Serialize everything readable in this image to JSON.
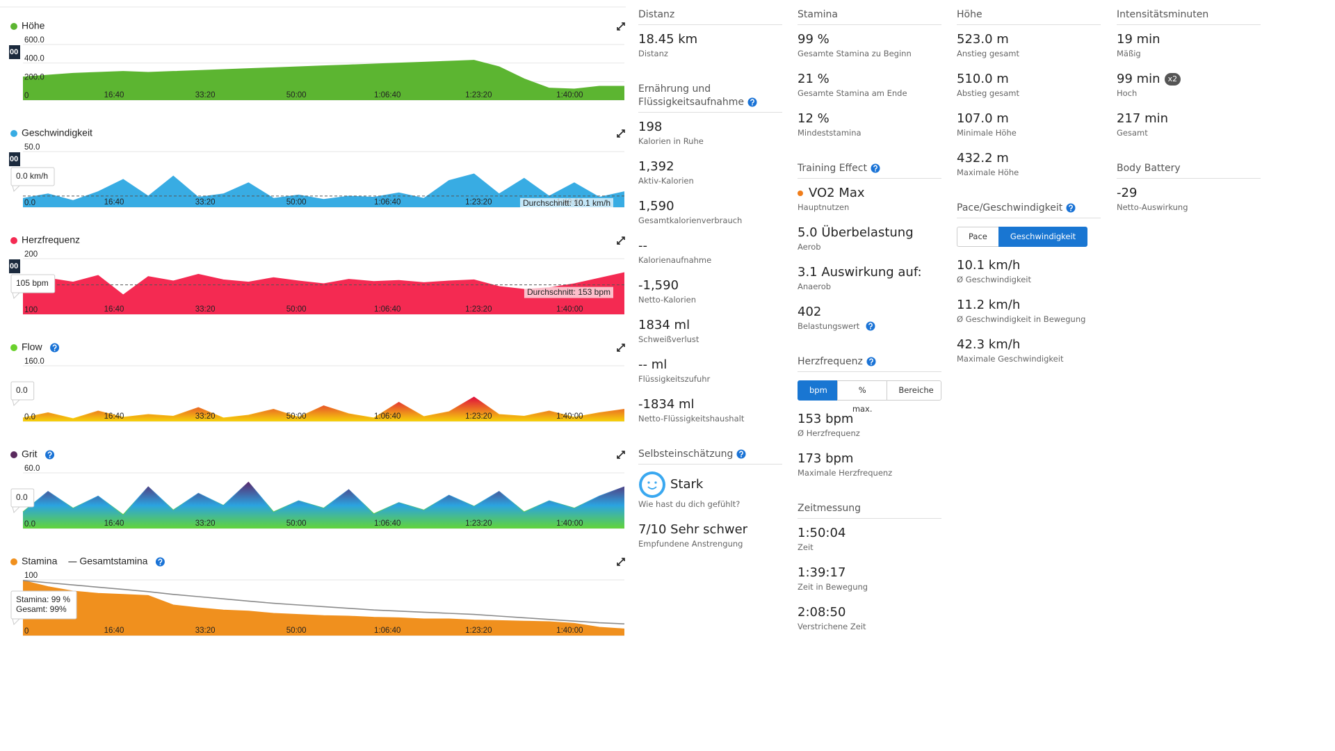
{
  "time_axis": {
    "xlim": [
      0,
      6600
    ],
    "x": [
      0,
      275,
      550,
      825,
      1100,
      1375,
      1650,
      1925,
      2200,
      2475,
      2750,
      3025,
      3300,
      3575,
      3850,
      4125,
      4400,
      4675,
      4950,
      5225,
      5500,
      5775,
      6050,
      6325,
      6600
    ],
    "xticks": [
      {
        "value": 1000,
        "label": "16:40"
      },
      {
        "value": 2000,
        "label": "33:20"
      },
      {
        "value": 3000,
        "label": "50:00"
      },
      {
        "value": 4000,
        "label": "1:06:40"
      },
      {
        "value": 5000,
        "label": "1:23:20"
      },
      {
        "value": 6000,
        "label": "1:40:00"
      }
    ]
  },
  "charts": [
    {
      "series": [
        {
          "name": "Höhe",
          "color": "#5cb531",
          "values": [
            250,
            270,
            290,
            300,
            310,
            300,
            310,
            320,
            330,
            340,
            350,
            360,
            370,
            380,
            390,
            400,
            410,
            420,
            430,
            360,
            230,
            130,
            120,
            150,
            150
          ]
        }
      ],
      "ylim": [
        0,
        600
      ],
      "yticks": [
        0,
        {
          "value": 200,
          "label": "200.0"
        },
        {
          "value": 400,
          "label": "400.0"
        },
        {
          "value": 600,
          "label": "600.0"
        }
      ],
      "edge_tag": "00"
    },
    {
      "series": [
        {
          "name": "Geschwindigkeit",
          "color": "#38ace3",
          "values": [
            8,
            12,
            6,
            14,
            25,
            10,
            28,
            9,
            12,
            22,
            8,
            11,
            7,
            10,
            9,
            13,
            8,
            24,
            30,
            12,
            26,
            10,
            22,
            9,
            14
          ]
        }
      ],
      "ylim": [
        0,
        50
      ],
      "yticks": [
        {
          "value": 0,
          "label": "0.0"
        },
        {
          "value": 50,
          "label": "50.0"
        }
      ],
      "tooltip": [
        "0.0 km/h"
      ],
      "average": {
        "value": 10.1,
        "label": "Durchschnitt: 10.1 km/h"
      },
      "edge_tag": "00"
    },
    {
      "series": [
        {
          "name": "Herzfrequenz",
          "color": "#f42a52",
          "values": [
            150,
            165,
            158,
            170,
            135,
            168,
            160,
            172,
            162,
            158,
            166,
            160,
            155,
            163,
            159,
            161,
            157,
            160,
            162,
            150,
            145,
            148,
            155,
            165,
            175
          ]
        }
      ],
      "ylim": [
        100,
        200
      ],
      "yticks": [
        100,
        200
      ],
      "tooltip": [
        "105 bpm"
      ],
      "average": {
        "value": 153,
        "label": "Durchschnitt: 153 bpm"
      },
      "edge_tag": "00"
    },
    {
      "series": [
        {
          "name": "Flow",
          "color": "#6ad12c",
          "fill_gradient": [
            "#e0103c",
            "#f6d20a"
          ],
          "values": [
            10,
            25,
            8,
            30,
            12,
            20,
            15,
            40,
            10,
            18,
            35,
            12,
            45,
            22,
            10,
            55,
            14,
            28,
            70,
            20,
            15,
            30,
            12,
            25,
            35
          ]
        }
      ],
      "help": true,
      "ylim": [
        0,
        160
      ],
      "yticks": [
        {
          "value": 0,
          "label": "0.0"
        },
        {
          "value": 160,
          "label": "160.0"
        }
      ],
      "tooltip": [
        "0.0"
      ]
    },
    {
      "series": [
        {
          "name": "Grit",
          "color": "#5a2a5e",
          "fill_gradient": [
            "#5a2a6e",
            "#2ba3e0",
            "#62d43a"
          ],
          "values": [
            18,
            40,
            22,
            35,
            15,
            45,
            20,
            38,
            25,
            50,
            18,
            30,
            22,
            42,
            16,
            28,
            20,
            36,
            24,
            40,
            18,
            30,
            22,
            35,
            45
          ]
        }
      ],
      "help": true,
      "ylim": [
        0,
        60
      ],
      "yticks": [
        {
          "value": 0,
          "label": "0.0"
        },
        {
          "value": 60,
          "label": "60.0"
        }
      ],
      "tooltip": [
        "0.0"
      ]
    },
    {
      "series": [
        {
          "name": "Stamina",
          "color": "#f0901e",
          "values": [
            99,
            88,
            80,
            76,
            74,
            72,
            55,
            50,
            46,
            44,
            40,
            38,
            36,
            35,
            33,
            32,
            30,
            30,
            28,
            27,
            26,
            25,
            22,
            15,
            12
          ]
        },
        {
          "name": "Gesamtstamina",
          "color": "#8a8a8a",
          "style": "line",
          "values": [
            99,
            95,
            91,
            87,
            83,
            79,
            74,
            70,
            66,
            62,
            58,
            55,
            52,
            49,
            46,
            44,
            42,
            40,
            38,
            35,
            32,
            29,
            26,
            23,
            21
          ]
        }
      ],
      "help": true,
      "ylim": [
        0,
        100
      ],
      "yticks": [
        0,
        100
      ],
      "tooltip": [
        "Stamina: 99 %",
        "Gesamt: 99%"
      ]
    }
  ],
  "stats": {
    "columns": [
      {
        "sections": [
          {
            "title": "Distanz",
            "items": [
              {
                "value": "18.45 km",
                "label": "Distanz"
              }
            ]
          },
          {
            "title": "Ernährung und Flüssigkeitsaufnahme",
            "help": true,
            "items": [
              {
                "value": "198",
                "label": "Kalorien in Ruhe"
              },
              {
                "value": "1,392",
                "label": "Aktiv-Kalorien"
              },
              {
                "value": "1,590",
                "label": "Gesamtkalorienverbrauch"
              },
              {
                "value": "--",
                "label": "Kalorienaufnahme"
              },
              {
                "value": "-1,590",
                "label": "Netto-Kalorien"
              },
              {
                "value": "1834 ml",
                "label": "Schweißverlust"
              },
              {
                "value": "-- ml",
                "label": "Flüssigkeitszufuhr"
              },
              {
                "value": "-1834 ml",
                "label": "Netto-Flüssigkeitshaushalt"
              }
            ]
          },
          {
            "title": "Selbsteinschätzung",
            "help": true,
            "items": [
              {
                "value": "Stark",
                "label": "Wie hast du dich gefühlt?",
                "icon": "smiley"
              },
              {
                "value": "7/10 Sehr schwer",
                "label": "Empfundene Anstrengung"
              }
            ]
          }
        ]
      },
      {
        "sections": [
          {
            "title": "Stamina",
            "items": [
              {
                "value": "99 %",
                "label": "Gesamte Stamina zu Beginn"
              },
              {
                "value": "21 %",
                "label": "Gesamte Stamina am Ende"
              },
              {
                "value": "12 %",
                "label": "Mindeststamina"
              }
            ]
          },
          {
            "title": "Training Effect",
            "help": true,
            "items": [
              {
                "value": "VO2 Max",
                "label": "Hauptnutzen",
                "icon": "dot"
              },
              {
                "value": "5.0 Überbelastung",
                "label": "Aerob"
              },
              {
                "value": "3.1 Auswirkung auf:",
                "label": "Anaerob"
              },
              {
                "value": "402",
                "label": "Belastungswert",
                "help": true
              }
            ]
          },
          {
            "title": "Herzfrequenz",
            "help": true,
            "tabs": [
              "bpm",
              "% max.",
              "Bereiche"
            ],
            "active_tab": 0,
            "items": [
              {
                "value": "153 bpm",
                "label": "Ø Herzfrequenz"
              },
              {
                "value": "173 bpm",
                "label": "Maximale Herzfrequenz"
              }
            ]
          },
          {
            "title": "Zeitmessung",
            "items": [
              {
                "value": "1:50:04",
                "label": "Zeit"
              },
              {
                "value": "1:39:17",
                "label": "Zeit in Bewegung"
              },
              {
                "value": "2:08:50",
                "label": "Verstrichene Zeit"
              }
            ]
          }
        ]
      },
      {
        "sections": [
          {
            "title": "Höhe",
            "items": [
              {
                "value": "523.0 m",
                "label": "Anstieg gesamt"
              },
              {
                "value": "510.0 m",
                "label": "Abstieg gesamt"
              },
              {
                "value": "107.0 m",
                "label": "Minimale Höhe"
              },
              {
                "value": "432.2 m",
                "label": "Maximale Höhe"
              }
            ]
          },
          {
            "title": "Pace/Geschwindigkeit",
            "help": true,
            "tabs": [
              "Pace",
              "Geschwindigkeit"
            ],
            "active_tab": 1,
            "items": [
              {
                "value": "10.1 km/h",
                "label": "Ø Geschwindigkeit"
              },
              {
                "value": "11.2 km/h",
                "label": "Ø Geschwindigkeit in Bewegung"
              },
              {
                "value": "42.3 km/h",
                "label": "Maximale Geschwindigkeit"
              }
            ]
          }
        ]
      },
      {
        "sections": [
          {
            "title": "Intensitätsminuten",
            "items": [
              {
                "value": "19 min",
                "label": "Mäßig"
              },
              {
                "value": "99 min",
                "label": "Hoch",
                "badge": "x2"
              },
              {
                "value": "217 min",
                "label": "Gesamt"
              }
            ]
          },
          {
            "title": "Body Battery",
            "items": [
              {
                "value": "-29",
                "label": "Netto-Auswirkung"
              }
            ]
          }
        ]
      }
    ]
  }
}
